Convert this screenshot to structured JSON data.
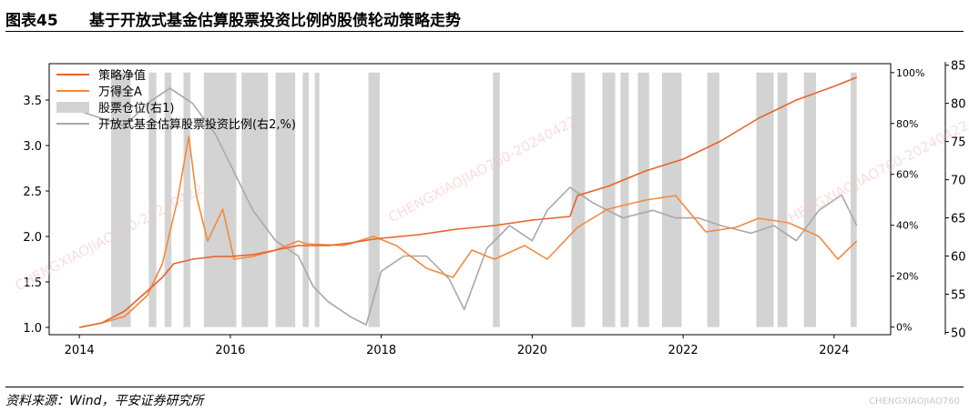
{
  "header": {
    "figure_number": "图表45",
    "title": "基于开放式基金估算股票投资比例的股债轮动策略走势"
  },
  "footer": {
    "source": "资料来源：Wind，平安证券研究所",
    "watermark": "CHENGXIAOJIAO760",
    "watermark_diag": "CHENGXIAOJIAO760-20240422"
  },
  "colors": {
    "strategy": "#e8622a",
    "wind_a": "#f4893a",
    "position": "#d3d3d3",
    "equity_ratio": "#a8a8a8"
  },
  "chart_data": {
    "type": "line",
    "legend_position": "top-left",
    "x_ticks": [
      "2014",
      "2016",
      "2018",
      "2020",
      "2022",
      "2024"
    ],
    "x_range": [
      2013.6,
      2024.75
    ],
    "y_left": {
      "range": [
        0.92,
        3.9
      ],
      "ticks": [
        "1.0",
        "1.5",
        "2.0",
        "2.5",
        "3.0",
        "3.5"
      ]
    },
    "y_right_position": {
      "range": [
        -0.03,
        1.035
      ],
      "ticks": [
        "0%",
        "20%",
        "40%",
        "60%",
        "80%",
        "100%"
      ]
    },
    "y_right_ratio": {
      "range": [
        49.7,
        85.2
      ],
      "ticks": [
        "50",
        "55",
        "60",
        "65",
        "70",
        "75",
        "80",
        "85"
      ]
    },
    "legend": [
      "策略净值",
      "万得全A",
      "股票仓位(右1)",
      "开放式基金估算股票投资比例(右2,%)"
    ],
    "series": [
      {
        "name": "策略净值",
        "axis": "left",
        "points": [
          [
            2014.0,
            1.0
          ],
          [
            2014.3,
            1.05
          ],
          [
            2014.6,
            1.18
          ],
          [
            2014.9,
            1.4
          ],
          [
            2015.1,
            1.55
          ],
          [
            2015.25,
            1.7
          ],
          [
            2015.5,
            1.75
          ],
          [
            2015.8,
            1.78
          ],
          [
            2016.0,
            1.78
          ],
          [
            2016.3,
            1.8
          ],
          [
            2016.6,
            1.85
          ],
          [
            2016.9,
            1.9
          ],
          [
            2017.0,
            1.9
          ],
          [
            2017.3,
            1.9
          ],
          [
            2017.6,
            1.93
          ],
          [
            2017.9,
            1.97
          ],
          [
            2018.0,
            1.98
          ],
          [
            2018.5,
            2.02
          ],
          [
            2019.0,
            2.08
          ],
          [
            2019.5,
            2.12
          ],
          [
            2020.0,
            2.18
          ],
          [
            2020.5,
            2.22
          ],
          [
            2020.6,
            2.45
          ],
          [
            2021.0,
            2.55
          ],
          [
            2021.5,
            2.72
          ],
          [
            2022.0,
            2.85
          ],
          [
            2022.5,
            3.05
          ],
          [
            2023.0,
            3.3
          ],
          [
            2023.5,
            3.5
          ],
          [
            2024.0,
            3.65
          ],
          [
            2024.3,
            3.75
          ]
        ]
      },
      {
        "name": "万得全A",
        "axis": "left",
        "points": [
          [
            2014.0,
            1.0
          ],
          [
            2014.3,
            1.05
          ],
          [
            2014.6,
            1.12
          ],
          [
            2014.9,
            1.35
          ],
          [
            2015.1,
            1.7
          ],
          [
            2015.3,
            2.4
          ],
          [
            2015.45,
            3.1
          ],
          [
            2015.55,
            2.45
          ],
          [
            2015.7,
            1.95
          ],
          [
            2015.9,
            2.3
          ],
          [
            2016.05,
            1.75
          ],
          [
            2016.3,
            1.78
          ],
          [
            2016.6,
            1.85
          ],
          [
            2016.9,
            1.95
          ],
          [
            2017.0,
            1.92
          ],
          [
            2017.5,
            1.9
          ],
          [
            2017.9,
            2.0
          ],
          [
            2018.2,
            1.9
          ],
          [
            2018.6,
            1.65
          ],
          [
            2018.95,
            1.55
          ],
          [
            2019.2,
            1.85
          ],
          [
            2019.5,
            1.75
          ],
          [
            2019.9,
            1.9
          ],
          [
            2020.2,
            1.75
          ],
          [
            2020.6,
            2.1
          ],
          [
            2021.0,
            2.3
          ],
          [
            2021.5,
            2.4
          ],
          [
            2021.9,
            2.45
          ],
          [
            2022.3,
            2.05
          ],
          [
            2022.7,
            2.1
          ],
          [
            2023.0,
            2.2
          ],
          [
            2023.4,
            2.15
          ],
          [
            2023.8,
            2.0
          ],
          [
            2024.05,
            1.75
          ],
          [
            2024.3,
            1.95
          ]
        ]
      },
      {
        "name": "开放式基金估算股票投资比例(右2,%)",
        "axis": "right_ratio",
        "points": [
          [
            2014.0,
            79
          ],
          [
            2014.3,
            78
          ],
          [
            2014.6,
            77
          ],
          [
            2014.9,
            80
          ],
          [
            2015.2,
            82
          ],
          [
            2015.5,
            80
          ],
          [
            2015.8,
            76
          ],
          [
            2016.0,
            72
          ],
          [
            2016.3,
            66
          ],
          [
            2016.6,
            62
          ],
          [
            2016.9,
            60
          ],
          [
            2017.1,
            56
          ],
          [
            2017.3,
            54
          ],
          [
            2017.6,
            52
          ],
          [
            2017.8,
            51
          ],
          [
            2018.0,
            58
          ],
          [
            2018.3,
            60
          ],
          [
            2018.6,
            60
          ],
          [
            2018.9,
            57
          ],
          [
            2019.1,
            53
          ],
          [
            2019.4,
            61
          ],
          [
            2019.7,
            64
          ],
          [
            2020.0,
            62
          ],
          [
            2020.2,
            66
          ],
          [
            2020.5,
            69
          ],
          [
            2020.8,
            67
          ],
          [
            2021.2,
            65
          ],
          [
            2021.6,
            66
          ],
          [
            2021.9,
            65
          ],
          [
            2022.2,
            65
          ],
          [
            2022.5,
            64
          ],
          [
            2022.9,
            63
          ],
          [
            2023.2,
            64
          ],
          [
            2023.5,
            62
          ],
          [
            2023.8,
            66
          ],
          [
            2024.1,
            68
          ],
          [
            2024.3,
            64
          ]
        ]
      }
    ],
    "position_periods": [
      [
        2014.42,
        2014.68
      ],
      [
        2014.92,
        2015.02
      ],
      [
        2015.13,
        2015.22
      ],
      [
        2015.38,
        2015.47
      ],
      [
        2015.65,
        2016.08
      ],
      [
        2016.15,
        2016.5
      ],
      [
        2016.6,
        2016.86
      ],
      [
        2016.96,
        2017.04
      ],
      [
        2017.12,
        2017.18
      ],
      [
        2017.83,
        2017.98
      ],
      [
        2019.48,
        2019.57
      ],
      [
        2020.52,
        2020.7
      ],
      [
        2020.93,
        2021.1
      ],
      [
        2021.17,
        2021.28
      ],
      [
        2021.4,
        2021.55
      ],
      [
        2021.72,
        2021.98
      ],
      [
        2022.32,
        2022.48
      ],
      [
        2022.97,
        2023.2
      ],
      [
        2023.25,
        2023.38
      ],
      [
        2023.6,
        2023.76
      ],
      [
        2024.22,
        2024.3
      ]
    ]
  }
}
